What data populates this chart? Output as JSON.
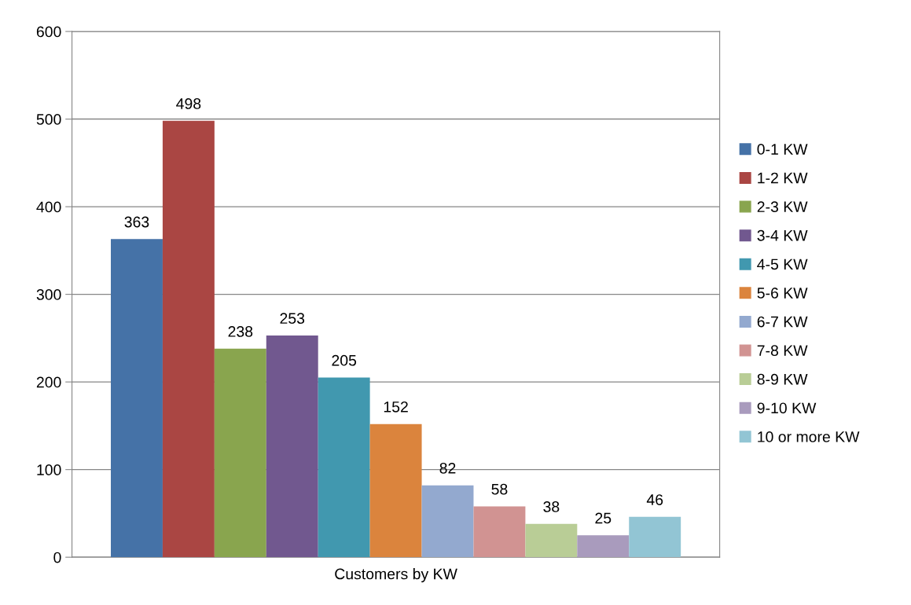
{
  "chart_data": {
    "type": "bar",
    "categories": [
      "Customers by KW"
    ],
    "series": [
      {
        "name": "0-1 KW",
        "color": "#4572a7",
        "values": [
          363
        ]
      },
      {
        "name": "1-2 KW",
        "color": "#aa4643",
        "values": [
          498
        ]
      },
      {
        "name": "2-3 KW",
        "color": "#89a54e",
        "values": [
          238
        ]
      },
      {
        "name": "3-4 KW",
        "color": "#71588f",
        "values": [
          253
        ]
      },
      {
        "name": "4-5 KW",
        "color": "#4198af",
        "values": [
          205
        ]
      },
      {
        "name": "5-6 KW",
        "color": "#db843d",
        "values": [
          152
        ]
      },
      {
        "name": "6-7 KW",
        "color": "#93a9cf",
        "values": [
          82
        ]
      },
      {
        "name": "7-8 KW",
        "color": "#d19392",
        "values": [
          58
        ]
      },
      {
        "name": "8-9 KW",
        "color": "#b9cd96",
        "values": [
          38
        ]
      },
      {
        "name": "9-10 KW",
        "color": "#a99bbd",
        "values": [
          25
        ]
      },
      {
        "name": "10 or more KW",
        "color": "#92c5d4",
        "values": [
          46
        ]
      }
    ],
    "ylim": [
      0,
      600
    ],
    "yticks": [
      0,
      100,
      200,
      300,
      400,
      500,
      600
    ],
    "grid": "y",
    "legend": "right",
    "data_labels": true
  }
}
